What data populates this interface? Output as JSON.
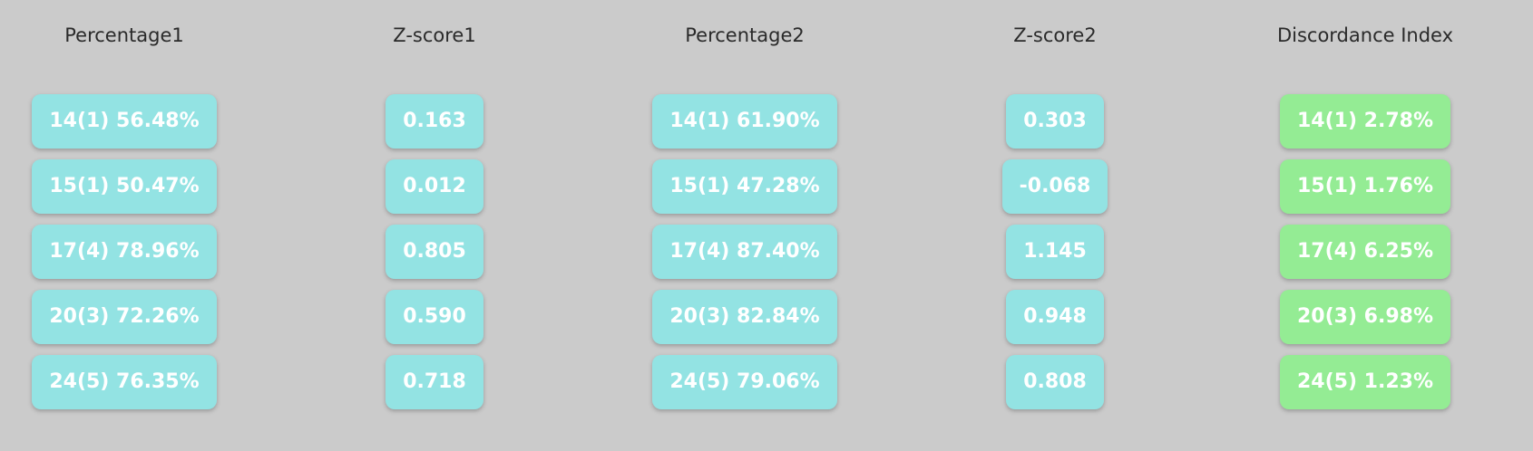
{
  "colors": {
    "background": "#cbcbcb",
    "cyan_cell": "#93e3e3",
    "green_cell": "#94ec94",
    "cell_text": "#ffffff",
    "header_text": "#2a2a2a"
  },
  "columns": [
    {
      "header": "Percentage1",
      "values": [
        "14(1) 56.48%",
        "15(1) 50.47%",
        "17(4) 78.96%",
        "20(3) 72.26%",
        "24(5) 76.35%"
      ]
    },
    {
      "header": "Z-score1",
      "values": [
        "0.163",
        "0.012",
        "0.805",
        "0.590",
        "0.718"
      ]
    },
    {
      "header": "Percentage2",
      "values": [
        "14(1) 61.90%",
        "15(1) 47.28%",
        "17(4) 87.40%",
        "20(3) 82.84%",
        "24(5) 79.06%"
      ]
    },
    {
      "header": "Z-score2",
      "values": [
        "0.303",
        "-0.068",
        "1.145",
        "0.948",
        "0.808"
      ]
    },
    {
      "header": "Discordance Index",
      "values": [
        "14(1) 2.78%",
        "15(1) 1.76%",
        "17(4) 6.25%",
        "20(3) 6.98%",
        "24(5) 1.23%"
      ]
    }
  ]
}
